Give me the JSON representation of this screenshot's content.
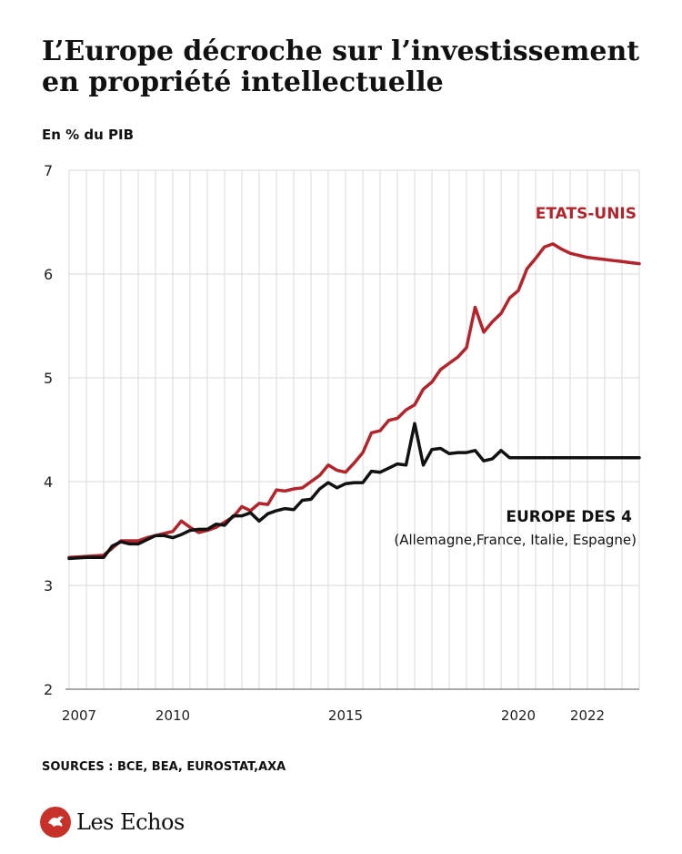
{
  "title": "L’Europe décroche sur l’investissement en propriété intellectuelle",
  "subtitle": "En % du PIB",
  "sources": "SOURCES : BCE, BEA, EUROSTAT,AXA",
  "brand": {
    "name": "Les Echos",
    "logo_icon": "les-echos-eagle-logo"
  },
  "colors": {
    "usa": "#b5232b",
    "europe": "#111111",
    "grid": "#d9d9d9"
  },
  "chart_data": {
    "type": "line",
    "title": "L’Europe décroche sur l’investissement en propriété intellectuelle",
    "ylabel": "En % du PIB",
    "xlim": [
      2007.0,
      2023.5
    ],
    "ylim": [
      2,
      7
    ],
    "yticks": [
      2,
      3,
      4,
      5,
      6,
      7
    ],
    "xticks": [
      2007,
      2010,
      2015,
      2020,
      2022
    ],
    "grid": true,
    "x": [
      2007.0,
      2007.5,
      2008.0,
      2008.25,
      2008.5,
      2008.75,
      2009.0,
      2009.25,
      2009.5,
      2009.75,
      2010.0,
      2010.25,
      2010.5,
      2010.75,
      2011.0,
      2011.25,
      2011.5,
      2011.75,
      2012.0,
      2012.25,
      2012.5,
      2012.75,
      2013.0,
      2013.25,
      2013.5,
      2013.75,
      2014.0,
      2014.25,
      2014.5,
      2014.75,
      2015.0,
      2015.25,
      2015.5,
      2015.75,
      2016.0,
      2016.25,
      2016.5,
      2016.75,
      2017.0,
      2017.25,
      2017.5,
      2017.75,
      2018.0,
      2018.25,
      2018.5,
      2018.75,
      2019.0,
      2019.25,
      2019.5,
      2019.75,
      2020.0,
      2020.25,
      2020.5,
      2020.75,
      2021.0,
      2021.25,
      2021.5,
      2021.75,
      2022.0,
      2022.25,
      2022.5,
      2022.75,
      2023.0,
      2023.25,
      2023.5
    ],
    "series": [
      {
        "name": "ETATS-UNIS",
        "values": [
          3.27,
          3.28,
          3.29,
          3.36,
          3.43,
          3.43,
          3.43,
          3.46,
          3.48,
          3.5,
          3.52,
          3.62,
          3.56,
          3.51,
          3.53,
          3.56,
          3.61,
          3.66,
          3.76,
          3.72,
          3.79,
          3.78,
          3.92,
          3.91,
          3.93,
          3.94,
          4.0,
          4.06,
          4.16,
          4.11,
          4.09,
          4.18,
          4.28,
          4.47,
          4.49,
          4.59,
          4.61,
          4.69,
          4.74,
          4.89,
          4.96,
          5.08,
          5.14,
          5.2,
          5.29,
          5.68,
          5.44,
          5.54,
          5.62,
          5.77,
          5.84,
          6.05,
          6.15,
          6.26,
          6.29,
          6.24,
          6.2,
          6.18,
          6.16,
          6.15,
          6.14,
          6.13,
          6.12,
          6.11,
          6.1
        ]
      },
      {
        "name": "EUROPE DES 4",
        "subname": "(Allemagne,France, Italie, Espagne)",
        "values": [
          3.26,
          3.27,
          3.27,
          3.38,
          3.42,
          3.4,
          3.4,
          3.44,
          3.48,
          3.48,
          3.46,
          3.49,
          3.53,
          3.54,
          3.54,
          3.59,
          3.58,
          3.67,
          3.67,
          3.7,
          3.62,
          3.69,
          3.72,
          3.74,
          3.73,
          3.82,
          3.83,
          3.93,
          3.99,
          3.94,
          3.98,
          3.99,
          3.99,
          4.1,
          4.09,
          4.13,
          4.17,
          4.16,
          4.56,
          4.16,
          4.31,
          4.32,
          4.27,
          4.28,
          4.28,
          4.3,
          4.2,
          4.22,
          4.3,
          4.23,
          4.23,
          4.23,
          4.23,
          4.23,
          4.23,
          4.23,
          4.23,
          4.23,
          4.23,
          4.23,
          4.23,
          4.23,
          4.23,
          4.23,
          4.23
        ]
      }
    ]
  }
}
